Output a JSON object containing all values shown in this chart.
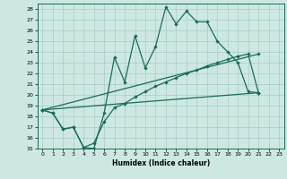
{
  "xlabel": "Humidex (Indice chaleur)",
  "bg_color": "#cde8e2",
  "grid_color": "#a8ccc6",
  "line_color": "#1a6b5a",
  "xlim_min": -0.5,
  "xlim_max": 23.5,
  "ylim_min": 15,
  "ylim_max": 28.5,
  "xticks": [
    0,
    1,
    2,
    3,
    4,
    5,
    6,
    7,
    8,
    9,
    10,
    11,
    12,
    13,
    14,
    15,
    16,
    17,
    18,
    19,
    20,
    21,
    22,
    23
  ],
  "yticks": [
    15,
    16,
    17,
    18,
    19,
    20,
    21,
    22,
    23,
    24,
    25,
    26,
    27,
    28
  ],
  "curve1_x": [
    0,
    1,
    2,
    3,
    4,
    5,
    6,
    7,
    8,
    9,
    10,
    11,
    12,
    13,
    14,
    15,
    16,
    17,
    18,
    19,
    20,
    21
  ],
  "curve1_y": [
    18.6,
    18.3,
    16.8,
    17.0,
    15.1,
    15.0,
    18.3,
    23.5,
    21.2,
    25.5,
    22.5,
    24.5,
    28.2,
    26.6,
    27.8,
    26.8,
    26.8,
    25.0,
    24.0,
    23.0,
    20.3,
    20.2
  ],
  "curve2_x": [
    0,
    1,
    2,
    3,
    4,
    5,
    6,
    7,
    8,
    9,
    10,
    11,
    12,
    13,
    14,
    15,
    16,
    17,
    18,
    19,
    20,
    21
  ],
  "curve2_y": [
    18.6,
    18.3,
    16.8,
    17.0,
    15.1,
    15.5,
    17.5,
    18.8,
    19.2,
    19.8,
    20.3,
    20.8,
    21.2,
    21.6,
    22.0,
    22.3,
    22.7,
    23.0,
    23.3,
    23.6,
    23.8,
    20.2
  ],
  "curve3_x": [
    0,
    21
  ],
  "curve3_y": [
    18.6,
    20.2
  ],
  "curve4_x": [
    0,
    21
  ],
  "curve4_y": [
    18.6,
    23.8
  ]
}
